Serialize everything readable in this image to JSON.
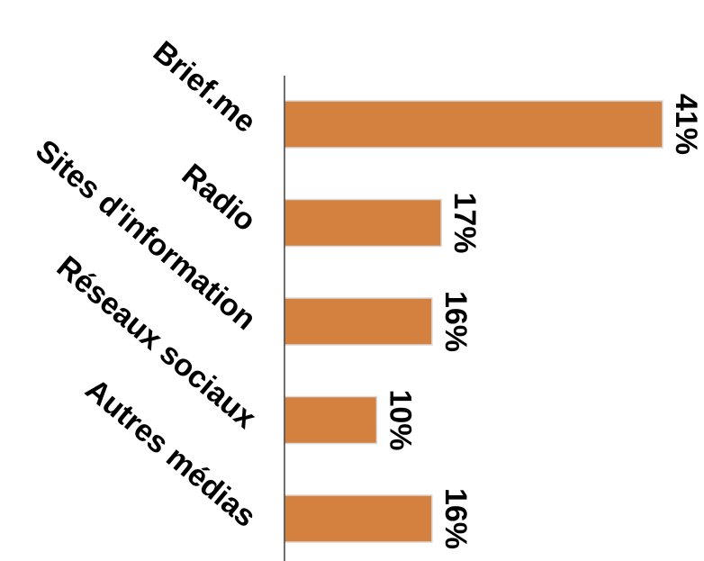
{
  "chart_data": {
    "type": "bar",
    "orientation": "horizontal",
    "categories": [
      "Brief.me",
      "Radio",
      "Sites d'information",
      "Réseaux sociaux",
      "Autres médias"
    ],
    "values": [
      41,
      17,
      16,
      10,
      16
    ],
    "value_labels": [
      "41%",
      "17%",
      "16%",
      "10%",
      "16%"
    ],
    "unit": "%",
    "bar_color": "#D4813F",
    "bar_stroke": "#d9d9d9",
    "axis_color": "#404040",
    "grid": false,
    "legend": "none",
    "xlim": [
      0,
      41
    ]
  }
}
